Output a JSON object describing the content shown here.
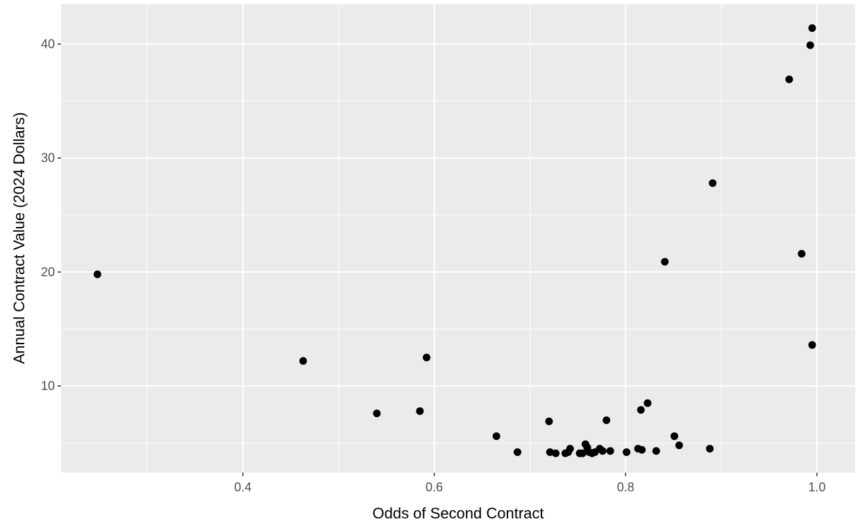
{
  "chart_data": {
    "type": "scatter",
    "title": "",
    "xlabel": "Odds of Second Contract",
    "ylabel": "Annual Contract Value (2024 Dollars)",
    "xlim": [
      0.21,
      1.04
    ],
    "ylim": [
      2.4,
      43.5
    ],
    "x_ticks": [
      0.4,
      0.6,
      0.8,
      1.0
    ],
    "x_tick_labels": [
      "0.4",
      "0.6",
      "0.8",
      "1.0"
    ],
    "x_minor": [
      0.3,
      0.5,
      0.7,
      0.9
    ],
    "y_ticks": [
      10,
      20,
      30,
      40
    ],
    "y_tick_labels": [
      "10",
      "20",
      "30",
      "40"
    ],
    "y_minor": [
      5,
      15,
      25,
      35
    ],
    "grid": true,
    "legend": "none",
    "colors": {
      "panel": "#ebebeb",
      "grid": "#ffffff",
      "point": "#000000"
    },
    "points": [
      {
        "x": 0.248,
        "y": 19.8
      },
      {
        "x": 0.463,
        "y": 12.2
      },
      {
        "x": 0.54,
        "y": 7.6
      },
      {
        "x": 0.585,
        "y": 7.8
      },
      {
        "x": 0.592,
        "y": 12.5
      },
      {
        "x": 0.665,
        "y": 5.6
      },
      {
        "x": 0.687,
        "y": 4.2
      },
      {
        "x": 0.72,
        "y": 6.9
      },
      {
        "x": 0.721,
        "y": 4.2
      },
      {
        "x": 0.727,
        "y": 4.1
      },
      {
        "x": 0.737,
        "y": 4.1
      },
      {
        "x": 0.74,
        "y": 4.2
      },
      {
        "x": 0.742,
        "y": 4.5
      },
      {
        "x": 0.752,
        "y": 4.1
      },
      {
        "x": 0.755,
        "y": 4.1
      },
      {
        "x": 0.758,
        "y": 4.9
      },
      {
        "x": 0.76,
        "y": 4.6
      },
      {
        "x": 0.762,
        "y": 4.2
      },
      {
        "x": 0.765,
        "y": 4.1
      },
      {
        "x": 0.768,
        "y": 4.2
      },
      {
        "x": 0.773,
        "y": 4.5
      },
      {
        "x": 0.776,
        "y": 4.3
      },
      {
        "x": 0.78,
        "y": 7.0
      },
      {
        "x": 0.784,
        "y": 4.3
      },
      {
        "x": 0.801,
        "y": 4.2
      },
      {
        "x": 0.813,
        "y": 4.5
      },
      {
        "x": 0.816,
        "y": 7.9
      },
      {
        "x": 0.817,
        "y": 4.4
      },
      {
        "x": 0.823,
        "y": 8.5
      },
      {
        "x": 0.832,
        "y": 4.3
      },
      {
        "x": 0.841,
        "y": 20.9
      },
      {
        "x": 0.851,
        "y": 5.6
      },
      {
        "x": 0.856,
        "y": 4.8
      },
      {
        "x": 0.888,
        "y": 4.5
      },
      {
        "x": 0.891,
        "y": 27.8
      },
      {
        "x": 0.971,
        "y": 36.9
      },
      {
        "x": 0.984,
        "y": 21.6
      },
      {
        "x": 0.993,
        "y": 39.9
      },
      {
        "x": 0.995,
        "y": 41.4
      },
      {
        "x": 0.995,
        "y": 13.6
      }
    ]
  }
}
